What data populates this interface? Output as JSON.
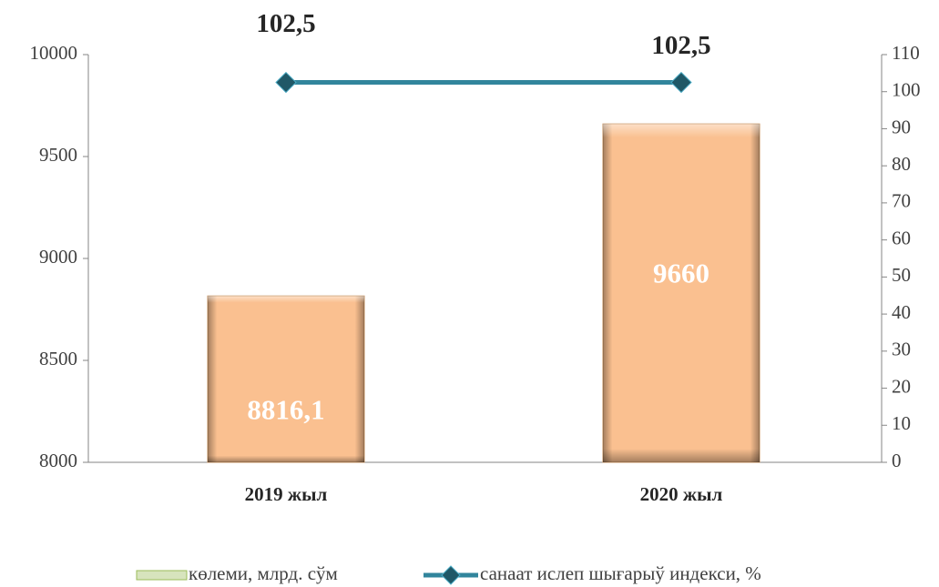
{
  "chart_data": {
    "type": "bar",
    "categories": [
      "2019 жыл",
      "2020 жыл"
    ],
    "series": [
      {
        "name": "көлеми, млрд. сўм",
        "type": "bar",
        "color": "#fac090",
        "values": [
          8816.1,
          9660
        ],
        "value_labels": [
          "8816,1",
          "9660"
        ]
      },
      {
        "name": "санаат ислеп шығарыў индекси, %",
        "type": "line",
        "axis": "y2",
        "color": "#31859c",
        "values": [
          102.5,
          102.5
        ],
        "value_labels": [
          "102,5",
          "102,5"
        ]
      }
    ],
    "ylim": [
      8000,
      10000
    ],
    "yticks": [
      8000,
      8500,
      9000,
      9500,
      10000
    ],
    "y2lim": [
      0,
      110
    ],
    "y2ticks": [
      0,
      10,
      20,
      30,
      40,
      50,
      60,
      70,
      80,
      90,
      100,
      110
    ],
    "legend": "bottom"
  }
}
